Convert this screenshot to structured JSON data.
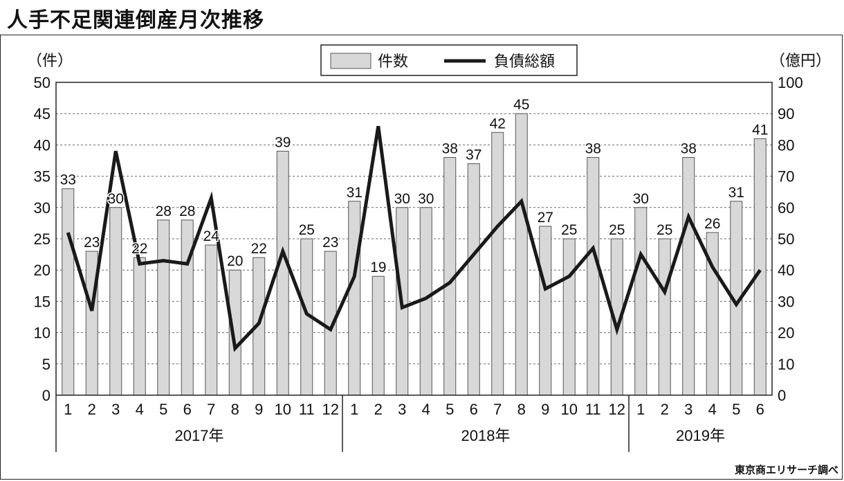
{
  "title": "人手不足関連倒産月次推移",
  "source": "東京商エリサーチ調べ",
  "chart_data": {
    "type": "bar+line",
    "categories": [
      "1",
      "2",
      "3",
      "4",
      "5",
      "6",
      "7",
      "8",
      "9",
      "10",
      "11",
      "12",
      "1",
      "2",
      "3",
      "4",
      "5",
      "6",
      "7",
      "8",
      "9",
      "10",
      "11",
      "12",
      "1",
      "2",
      "3",
      "4",
      "5",
      "6"
    ],
    "year_groups": [
      {
        "label": "2017年",
        "count": 12
      },
      {
        "label": "2018年",
        "count": 12
      },
      {
        "label": "2019年",
        "count": 6
      }
    ],
    "series": [
      {
        "name": "件数",
        "type": "bar",
        "axis": "left",
        "values": [
          33,
          23,
          30,
          22,
          28,
          28,
          24,
          20,
          22,
          39,
          25,
          23,
          31,
          19,
          30,
          30,
          38,
          37,
          42,
          45,
          27,
          25,
          38,
          25,
          30,
          25,
          38,
          26,
          31,
          41
        ]
      },
      {
        "name": "負債総額",
        "type": "line",
        "axis": "right",
        "values": [
          52,
          27,
          78,
          42,
          43,
          42,
          63,
          15,
          23,
          46,
          26,
          21,
          38,
          86,
          28,
          31,
          36,
          45,
          54,
          62,
          34,
          38,
          47,
          21,
          45,
          33,
          57,
          41,
          29,
          40
        ]
      }
    ],
    "left_axis": {
      "unit": "（件）",
      "min": 0,
      "max": 50,
      "step": 5
    },
    "right_axis": {
      "unit": "（億円）",
      "min": 0,
      "max": 100,
      "step": 10
    },
    "legend_position": "top-center",
    "grid": "dashed-horizontal",
    "colors": {
      "bar_fill": "#d8d8d8",
      "bar_stroke": "#555555",
      "line": "#1a1a1a"
    }
  }
}
